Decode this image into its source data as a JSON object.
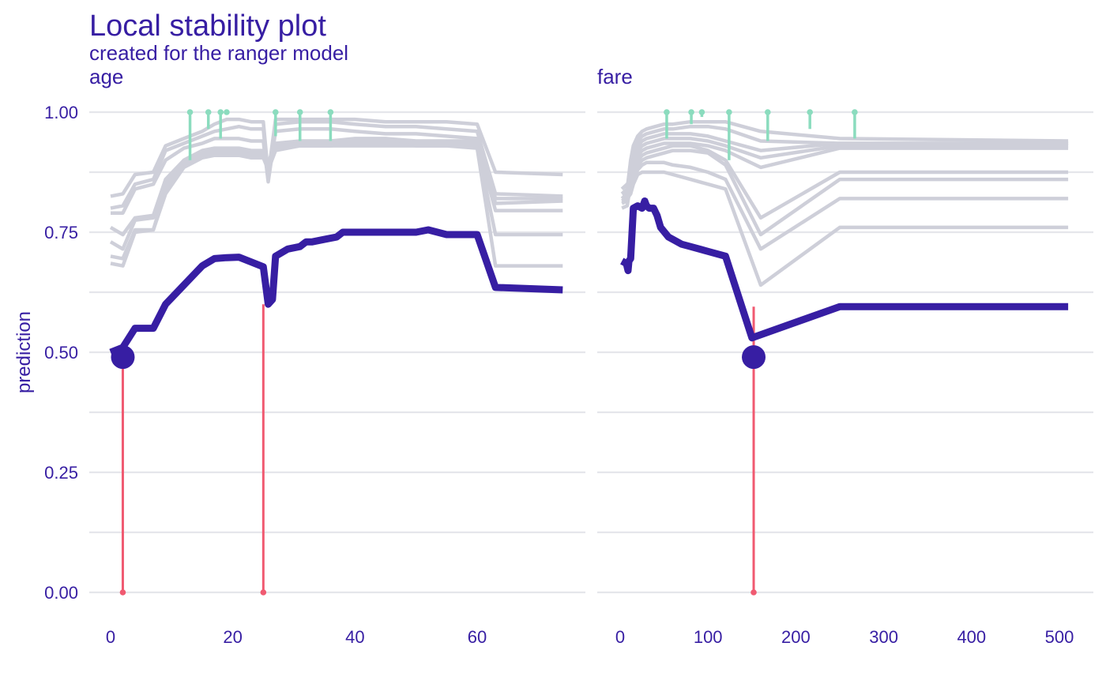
{
  "title": "Local stability plot",
  "subtitle": "created for the ranger model",
  "colors": {
    "text": "#371ea3",
    "main_line": "#371ea3",
    "profile_lines": "#cecfd9",
    "residual_lines": "#8bdcbe",
    "observation_line": "#f05a71",
    "grid": "#e5e6eb"
  },
  "chart_data": [
    {
      "type": "line",
      "panel": "age",
      "strip_label": "age",
      "ylabel": "prediction",
      "xlim": [
        -1,
        74
      ],
      "ylim": [
        0,
        1
      ],
      "x_ticks": [
        0,
        20,
        40,
        60
      ],
      "y_ticks": [
        0.0,
        0.25,
        0.5,
        0.75,
        1.0
      ],
      "y_tick_labels": [
        "0.00",
        "0.25",
        "0.50",
        "0.75",
        "1.00"
      ],
      "grid": true,
      "main_profile": {
        "x": [
          0,
          2,
          4,
          7,
          9,
          12,
          15,
          17,
          19,
          21,
          23,
          25,
          25.8,
          26.5,
          27,
          29,
          31,
          32,
          33,
          35,
          37,
          38,
          40,
          43,
          46,
          48,
          50,
          52,
          55,
          60,
          63,
          74
        ],
        "y": [
          0.5,
          0.51,
          0.55,
          0.55,
          0.6,
          0.64,
          0.68,
          0.695,
          0.697,
          0.698,
          0.688,
          0.678,
          0.6,
          0.61,
          0.7,
          0.715,
          0.72,
          0.73,
          0.73,
          0.735,
          0.74,
          0.75,
          0.75,
          0.75,
          0.75,
          0.75,
          0.75,
          0.755,
          0.745,
          0.745,
          0.635,
          0.63
        ]
      },
      "observation": {
        "x": 2,
        "y": 0.49
      },
      "neighbor_profiles": [
        {
          "x": [
            0,
            2,
            4,
            7,
            9,
            12,
            15,
            17,
            19,
            21,
            23,
            25,
            25.8,
            27,
            31,
            36,
            40,
            45,
            50,
            55,
            60,
            63,
            74
          ],
          "y": [
            0.825,
            0.83,
            0.87,
            0.875,
            0.93,
            0.945,
            0.96,
            0.975,
            0.985,
            0.985,
            0.98,
            0.98,
            0.87,
            0.985,
            0.985,
            0.985,
            0.985,
            0.98,
            0.98,
            0.98,
            0.975,
            0.875,
            0.87
          ]
        },
        {
          "x": [
            0,
            2,
            4,
            7,
            9,
            12,
            15,
            17,
            19,
            21,
            23,
            25,
            25.8,
            27,
            31,
            36,
            40,
            45,
            50,
            55,
            60,
            63,
            74
          ],
          "y": [
            0.8,
            0.805,
            0.85,
            0.86,
            0.92,
            0.935,
            0.95,
            0.96,
            0.965,
            0.97,
            0.965,
            0.965,
            0.86,
            0.975,
            0.98,
            0.98,
            0.975,
            0.97,
            0.97,
            0.965,
            0.96,
            0.83,
            0.825
          ]
        },
        {
          "x": [
            0,
            2,
            4,
            7,
            9,
            12,
            15,
            17,
            19,
            21,
            23,
            25,
            25.8,
            27,
            31,
            36,
            40,
            45,
            50,
            55,
            60,
            63,
            74
          ],
          "y": [
            0.79,
            0.79,
            0.84,
            0.85,
            0.9,
            0.925,
            0.935,
            0.945,
            0.945,
            0.945,
            0.94,
            0.94,
            0.855,
            0.96,
            0.965,
            0.965,
            0.96,
            0.955,
            0.955,
            0.95,
            0.945,
            0.82,
            0.82
          ]
        },
        {
          "x": [
            0,
            2,
            4,
            7,
            9,
            12,
            15,
            17,
            19,
            21,
            23,
            25,
            25.8,
            27,
            31,
            36,
            40,
            45,
            50,
            55,
            60,
            63,
            74
          ],
          "y": [
            0.76,
            0.745,
            0.78,
            0.785,
            0.86,
            0.9,
            0.92,
            0.925,
            0.925,
            0.925,
            0.92,
            0.92,
            0.895,
            0.935,
            0.94,
            0.94,
            0.945,
            0.945,
            0.94,
            0.94,
            0.94,
            0.81,
            0.815
          ]
        },
        {
          "x": [
            0,
            2,
            4,
            7,
            9,
            12,
            15,
            17,
            19,
            21,
            23,
            25,
            25.8,
            27,
            31,
            36,
            40,
            45,
            50,
            55,
            60,
            63,
            74
          ],
          "y": [
            0.73,
            0.715,
            0.775,
            0.78,
            0.85,
            0.895,
            0.915,
            0.92,
            0.92,
            0.92,
            0.915,
            0.915,
            0.89,
            0.93,
            0.935,
            0.935,
            0.94,
            0.94,
            0.935,
            0.935,
            0.935,
            0.795,
            0.795
          ]
        },
        {
          "x": [
            0,
            2,
            4,
            7,
            9,
            12,
            15,
            17,
            19,
            21,
            23,
            25,
            25.8,
            27,
            31,
            36,
            40,
            45,
            50,
            55,
            60,
            63,
            74
          ],
          "y": [
            0.7,
            0.695,
            0.755,
            0.755,
            0.84,
            0.89,
            0.91,
            0.915,
            0.915,
            0.915,
            0.91,
            0.91,
            0.88,
            0.925,
            0.93,
            0.93,
            0.935,
            0.935,
            0.93,
            0.93,
            0.93,
            0.745,
            0.745
          ]
        },
        {
          "x": [
            0,
            2,
            4,
            7,
            9,
            12,
            15,
            17,
            19,
            21,
            23,
            25,
            25.8,
            27,
            31,
            36,
            40,
            45,
            50,
            55,
            60,
            63,
            74
          ],
          "y": [
            0.685,
            0.68,
            0.75,
            0.755,
            0.83,
            0.885,
            0.905,
            0.91,
            0.91,
            0.91,
            0.905,
            0.905,
            0.88,
            0.92,
            0.93,
            0.93,
            0.93,
            0.93,
            0.93,
            0.93,
            0.925,
            0.68,
            0.68
          ]
        }
      ],
      "residual_segments": [
        {
          "x": 13,
          "y_top": 1.0,
          "y_bottom": 0.9
        },
        {
          "x": 16,
          "y_top": 1.0,
          "y_bottom": 0.965
        },
        {
          "x": 18,
          "y_top": 1.0,
          "y_bottom": 0.945
        },
        {
          "x": 19,
          "y_top": 1.0,
          "y_bottom": 0.995
        },
        {
          "x": 27,
          "y_top": 1.0,
          "y_bottom": 0.95
        },
        {
          "x": 31,
          "y_top": 1.0,
          "y_bottom": 0.94
        },
        {
          "x": 36,
          "y_top": 1.0,
          "y_bottom": 0.94
        }
      ],
      "observation_segments": [
        {
          "x": 2,
          "y_top": 0.49,
          "y_bottom": 0.0
        },
        {
          "x": 25,
          "y_top": 0.6,
          "y_bottom": 0.0
        }
      ]
    },
    {
      "type": "line",
      "panel": "fare",
      "strip_label": "fare",
      "xlim": [
        -8,
        518
      ],
      "ylim": [
        0,
        1
      ],
      "x_ticks": [
        0,
        100,
        200,
        300,
        400,
        500
      ],
      "y_ticks": [
        0.0,
        0.25,
        0.5,
        0.75,
        1.0
      ],
      "grid": true,
      "main_profile": {
        "x": [
          2,
          7,
          9,
          10,
          12,
          15,
          20,
          25,
          28,
          30,
          33,
          38,
          42,
          46,
          55,
          70,
          80,
          100,
          120,
          150,
          250,
          510
        ],
        "y": [
          0.69,
          0.685,
          0.67,
          0.69,
          0.695,
          0.8,
          0.805,
          0.8,
          0.815,
          0.805,
          0.8,
          0.8,
          0.785,
          0.76,
          0.74,
          0.725,
          0.72,
          0.71,
          0.7,
          0.53,
          0.595,
          0.595
        ]
      },
      "observation": {
        "x": 152,
        "y": 0.49
      },
      "neighbor_profiles": [
        {
          "x": [
            2,
            8,
            12,
            15,
            20,
            25,
            30,
            40,
            50,
            60,
            80,
            100,
            120,
            160,
            250,
            510
          ],
          "y": [
            0.83,
            0.84,
            0.9,
            0.93,
            0.95,
            0.96,
            0.965,
            0.97,
            0.975,
            0.975,
            0.98,
            0.98,
            0.98,
            0.96,
            0.945,
            0.94
          ]
        },
        {
          "x": [
            2,
            8,
            12,
            15,
            20,
            25,
            30,
            40,
            50,
            60,
            80,
            100,
            120,
            160,
            250,
            510
          ],
          "y": [
            0.82,
            0.83,
            0.88,
            0.92,
            0.94,
            0.95,
            0.955,
            0.96,
            0.965,
            0.965,
            0.97,
            0.97,
            0.965,
            0.94,
            0.935,
            0.935
          ]
        },
        {
          "x": [
            2,
            8,
            12,
            15,
            20,
            25,
            30,
            40,
            50,
            60,
            80,
            100,
            120,
            160,
            250,
            510
          ],
          "y": [
            0.815,
            0.82,
            0.87,
            0.91,
            0.93,
            0.94,
            0.945,
            0.95,
            0.955,
            0.955,
            0.955,
            0.95,
            0.94,
            0.92,
            0.935,
            0.935
          ]
        },
        {
          "x": [
            2,
            8,
            12,
            15,
            20,
            25,
            30,
            40,
            50,
            60,
            80,
            100,
            120,
            160,
            250,
            510
          ],
          "y": [
            0.81,
            0.815,
            0.86,
            0.9,
            0.92,
            0.93,
            0.935,
            0.94,
            0.945,
            0.945,
            0.945,
            0.94,
            0.93,
            0.905,
            0.93,
            0.93
          ]
        },
        {
          "x": [
            2,
            8,
            12,
            15,
            20,
            25,
            30,
            40,
            50,
            60,
            80,
            100,
            120,
            160,
            250,
            510
          ],
          "y": [
            0.8,
            0.805,
            0.85,
            0.89,
            0.91,
            0.92,
            0.925,
            0.93,
            0.935,
            0.935,
            0.935,
            0.93,
            0.92,
            0.885,
            0.925,
            0.925
          ]
        },
        {
          "x": [
            2,
            8,
            12,
            15,
            20,
            25,
            30,
            40,
            50,
            60,
            80,
            100,
            120,
            160,
            250,
            510
          ],
          "y": [
            0.84,
            0.85,
            0.86,
            0.88,
            0.9,
            0.91,
            0.915,
            0.92,
            0.925,
            0.93,
            0.93,
            0.92,
            0.9,
            0.78,
            0.875,
            0.875
          ]
        },
        {
          "x": [
            2,
            8,
            12,
            15,
            20,
            25,
            30,
            40,
            50,
            60,
            80,
            100,
            120,
            160,
            250,
            510
          ],
          "y": [
            0.83,
            0.835,
            0.845,
            0.87,
            0.89,
            0.9,
            0.905,
            0.91,
            0.915,
            0.92,
            0.92,
            0.915,
            0.89,
            0.745,
            0.86,
            0.86
          ]
        },
        {
          "x": [
            2,
            8,
            12,
            15,
            20,
            25,
            30,
            40,
            50,
            60,
            80,
            100,
            120,
            160,
            250,
            510
          ],
          "y": [
            0.82,
            0.825,
            0.835,
            0.86,
            0.88,
            0.89,
            0.895,
            0.895,
            0.895,
            0.89,
            0.885,
            0.875,
            0.86,
            0.715,
            0.82,
            0.82
          ]
        },
        {
          "x": [
            2,
            8,
            12,
            15,
            20,
            25,
            30,
            40,
            50,
            60,
            80,
            100,
            120,
            160,
            250,
            510
          ],
          "y": [
            0.815,
            0.82,
            0.83,
            0.85,
            0.87,
            0.875,
            0.875,
            0.875,
            0.875,
            0.87,
            0.86,
            0.85,
            0.84,
            0.64,
            0.76,
            0.76
          ]
        }
      ],
      "residual_segments": [
        {
          "x": 53,
          "y_top": 1.0,
          "y_bottom": 0.945
        },
        {
          "x": 81,
          "y_top": 1.0,
          "y_bottom": 0.975
        },
        {
          "x": 93,
          "y_top": 1.0,
          "y_bottom": 0.99
        },
        {
          "x": 124,
          "y_top": 1.0,
          "y_bottom": 0.9
        },
        {
          "x": 168,
          "y_top": 1.0,
          "y_bottom": 0.94
        },
        {
          "x": 216,
          "y_top": 1.0,
          "y_bottom": 0.965
        },
        {
          "x": 267,
          "y_top": 1.0,
          "y_bottom": 0.945
        }
      ],
      "observation_segments": [
        {
          "x": 152,
          "y_top": 0.595,
          "y_bottom": 0.0
        }
      ]
    }
  ]
}
